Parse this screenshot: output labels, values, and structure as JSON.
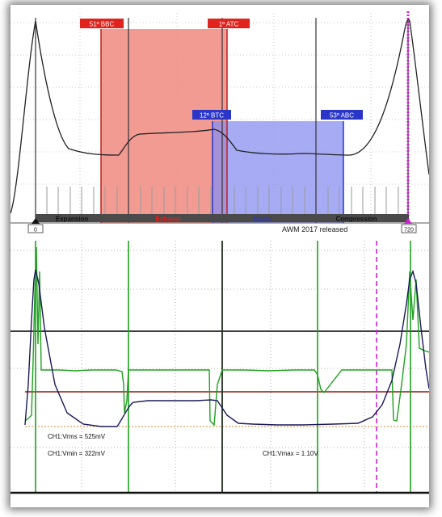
{
  "top_panel": {
    "markers": {
      "bbc": "51º BBC",
      "atc": "1º ATC",
      "btc": "12º BTC",
      "abc": "53º ABC"
    },
    "strokes": [
      "Expansion",
      "Exhaust",
      "Intake",
      "Compression"
    ],
    "scale_start": "0",
    "scale_end": "720",
    "watermark": "AWM 2017  released"
  },
  "bottom_panel": {
    "readouts": {
      "vrms": "CH1:Vrms = 525mV",
      "vmin": "CH1:Vmin = 322mV",
      "vmax": "CH1:Vmax = 1.10V"
    }
  },
  "colors": {
    "exhaust_fill": "#f08a80",
    "intake_fill": "#8a8ff0",
    "marker_red": "#e0231c",
    "marker_blue": "#2a36c8",
    "cam_trace": "#1fa01f",
    "pressure_trace": "#1a1a5a",
    "cursor_magenta": "#d020d0"
  }
}
